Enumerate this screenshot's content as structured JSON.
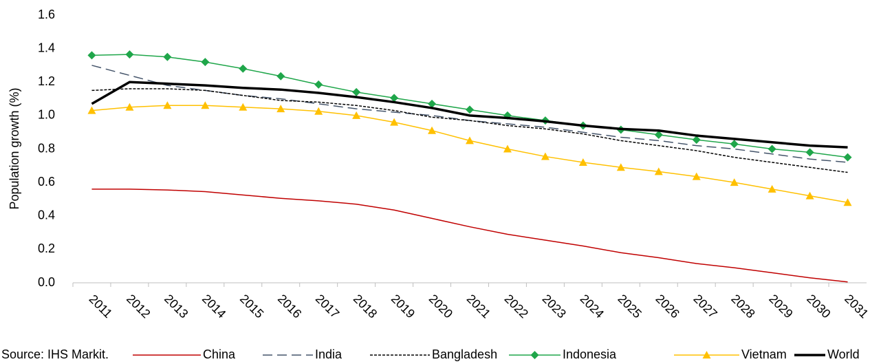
{
  "chart_data": {
    "type": "line",
    "y_label": "Population growth (%)",
    "source": "Source: IHS Markit.",
    "categories": [
      "2011",
      "2012",
      "2013",
      "2014",
      "2015",
      "2016",
      "2017",
      "2018",
      "2019",
      "2020",
      "2021",
      "2022",
      "2023",
      "2024",
      "2025",
      "2026",
      "2027",
      "2028",
      "2029",
      "2030",
      "2031"
    ],
    "ylim": [
      0,
      1.6
    ],
    "yticks": [
      {
        "value": 0,
        "label": "0.0"
      },
      0.2,
      0.4,
      0.6,
      0.8,
      {
        "value": 1,
        "label": "1.0"
      },
      1.2,
      1.4,
      1.6
    ],
    "legend": "bottom",
    "series": [
      {
        "name": "China",
        "color": "#c00000",
        "dash": "solid",
        "width": 1.5,
        "marker": null,
        "values": [
          0.56,
          0.56,
          0.555,
          0.545,
          0.525,
          0.505,
          0.49,
          0.47,
          0.435,
          0.385,
          0.335,
          0.29,
          0.255,
          0.22,
          0.18,
          0.15,
          0.115,
          0.09,
          0.06,
          0.03,
          0.005
        ]
      },
      {
        "name": "India",
        "color": "#44546a",
        "dash": "dashed",
        "width": 1.5,
        "marker": null,
        "values": [
          1.3,
          1.24,
          1.18,
          1.15,
          1.12,
          1.1,
          1.07,
          1.04,
          1.02,
          1.0,
          0.97,
          0.95,
          0.93,
          0.9,
          0.87,
          0.85,
          0.82,
          0.8,
          0.77,
          0.74,
          0.72
        ]
      },
      {
        "name": "Bangladesh",
        "color": "#000000",
        "dash": "dotted",
        "width": 1.5,
        "marker": null,
        "values": [
          1.15,
          1.16,
          1.16,
          1.15,
          1.12,
          1.09,
          1.08,
          1.06,
          1.03,
          0.99,
          0.97,
          0.94,
          0.92,
          0.89,
          0.85,
          0.82,
          0.79,
          0.75,
          0.72,
          0.69,
          0.66
        ]
      },
      {
        "name": "Indonesia",
        "color": "#1fa64a",
        "dash": "solid",
        "width": 1.5,
        "marker": "diamond",
        "values": [
          1.36,
          1.365,
          1.35,
          1.32,
          1.28,
          1.235,
          1.185,
          1.14,
          1.105,
          1.07,
          1.035,
          1.0,
          0.97,
          0.94,
          0.915,
          0.885,
          0.855,
          0.83,
          0.8,
          0.78,
          0.75
        ]
      },
      {
        "name": "Vietnam",
        "color": "#ffc000",
        "dash": "solid",
        "width": 1.5,
        "marker": "triangle",
        "values": [
          1.03,
          1.05,
          1.06,
          1.06,
          1.05,
          1.04,
          1.025,
          1.0,
          0.96,
          0.91,
          0.85,
          0.8,
          0.755,
          0.72,
          0.69,
          0.665,
          0.635,
          0.6,
          0.56,
          0.52,
          0.48
        ]
      },
      {
        "name": "World",
        "color": "#000000",
        "dash": "solid",
        "width": 3.5,
        "marker": null,
        "values": [
          1.07,
          1.2,
          1.19,
          1.18,
          1.165,
          1.155,
          1.135,
          1.11,
          1.08,
          1.045,
          1.0,
          0.985,
          0.965,
          0.94,
          0.92,
          0.91,
          0.88,
          0.86,
          0.84,
          0.82,
          0.81
        ]
      }
    ]
  }
}
